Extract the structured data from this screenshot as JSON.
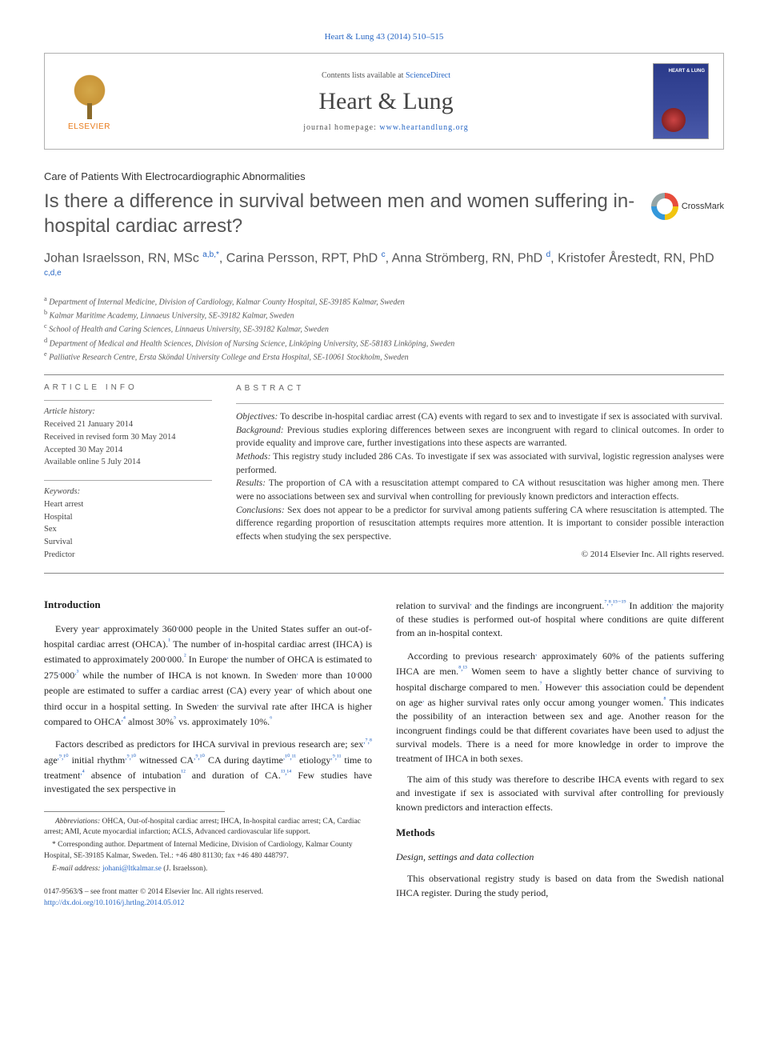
{
  "citation": "Heart & Lung 43 (2014) 510–515",
  "header": {
    "contents_prefix": "Contents lists available at ",
    "contents_link": "ScienceDirect",
    "journal_name": "Heart & Lung",
    "homepage_prefix": "journal homepage: ",
    "homepage_link": "www.heartandlung.org",
    "elsevier": "ELSEVIER",
    "cover_label": "HEART & LUNG"
  },
  "article_type": "Care of Patients With Electrocardiographic Abnormalities",
  "title": "Is there a difference in survival between men and women suffering in-hospital cardiac arrest?",
  "crossmark_label": "CrossMark",
  "authors_html": "Johan Israelsson, RN, MSc <sup>a,b,*</sup>, Carina Persson, RPT, PhD <sup>c</sup>, Anna Strömberg, RN, PhD <sup>d</sup>, Kristofer Årestedt, RN, PhD <sup>c,d,e</sup>",
  "affiliations": [
    "a Department of Internal Medicine, Division of Cardiology, Kalmar County Hospital, SE-39185 Kalmar, Sweden",
    "b Kalmar Maritime Academy, Linnaeus University, SE-39182 Kalmar, Sweden",
    "c School of Health and Caring Sciences, Linnaeus University, SE-39182 Kalmar, Sweden",
    "d Department of Medical and Health Sciences, Division of Nursing Science, Linköping University, SE-58183 Linköping, Sweden",
    "e Palliative Research Centre, Ersta Sköndal University College and Ersta Hospital, SE-10061 Stockholm, Sweden"
  ],
  "info_label": "ARTICLE INFO",
  "abstract_label": "ABSTRACT",
  "history": {
    "label": "Article history:",
    "received": "Received 21 January 2014",
    "revised": "Received in revised form 30 May 2014",
    "accepted": "Accepted 30 May 2014",
    "online": "Available online 5 July 2014"
  },
  "keywords": {
    "label": "Keywords:",
    "items": [
      "Heart arrest",
      "Hospital",
      "Sex",
      "Survival",
      "Predictor"
    ]
  },
  "abstract": {
    "objectives": "Objectives: To describe in-hospital cardiac arrest (CA) events with regard to sex and to investigate if sex is associated with survival.",
    "background": "Background: Previous studies exploring differences between sexes are incongruent with regard to clinical outcomes. In order to provide equality and improve care, further investigations into these aspects are warranted.",
    "methods": "Methods: This registry study included 286 CAs. To investigate if sex was associated with survival, logistic regression analyses were performed.",
    "results": "Results: The proportion of CA with a resuscitation attempt compared to CA without resuscitation was higher among men. There were no associations between sex and survival when controlling for previously known predictors and interaction effects.",
    "conclusions": "Conclusions: Sex does not appear to be a predictor for survival among patients suffering CA where resuscitation is attempted. The difference regarding proportion of resuscitation attempts requires more attention. It is important to consider possible interaction effects when studying the sex perspective.",
    "copyright": "© 2014 Elsevier Inc. All rights reserved."
  },
  "sections": {
    "introduction_title": "Introduction",
    "methods_title": "Methods",
    "design_title": "Design, settings and data collection"
  },
  "body": {
    "intro_p1": "Every year, approximately 360,000 people in the United States suffer an out-of-hospital cardiac arrest (OHCA).¹ The number of in-hospital cardiac arrest (IHCA) is estimated to approximately 200,000.² In Europe, the number of OHCA is estimated to 275,000,³ while the number of IHCA is not known. In Sweden, more than 10,000 people are estimated to suffer a cardiac arrest (CA) every year, of which about one third occur in a hospital setting. In Sweden, the survival rate after IHCA is higher compared to OHCA,⁴ almost 30%⁵ vs. approximately 10%.⁶",
    "intro_p2": "Factors described as predictors for IHCA survival in previous research are; sex,⁷,⁸ age,⁹,¹⁰ initial rhythm,⁹,¹⁰ witnessed CA,⁹,¹⁰ CA during daytime,¹⁰,¹¹ etiology,⁹,¹¹ time to treatment,⁴ absence of intubation¹² and duration of CA.¹³,¹⁴ Few studies have investigated the sex perspective in",
    "col2_p1": "relation to survival, and the findings are incongruent.⁷,⁸,¹⁵⁻¹⁹ In addition, the majority of these studies is performed out-of hospital where conditions are quite different from an in-hospital context.",
    "col2_p2": "According to previous research, approximately 60% of the patients suffering IHCA are men.⁸,¹³ Women seem to have a slightly better chance of surviving to hospital discharge compared to men.⁷ However, this association could be dependent on age, as higher survival rates only occur among younger women.⁸ This indicates the possibility of an interaction between sex and age. Another reason for the incongruent findings could be that different covariates have been used to adjust the survival models. There is a need for more knowledge in order to improve the treatment of IHCA in both sexes.",
    "col2_p3": "The aim of this study was therefore to describe IHCA events with regard to sex and investigate if sex is associated with survival after controlling for previously known predictors and interaction effects.",
    "methods_p1": "This observational registry study is based on data from the Swedish national IHCA register. During the study period,"
  },
  "footnotes": {
    "abbrev": "Abbreviations: OHCA, Out-of-hospital cardiac arrest; IHCA, In-hospital cardiac arrest; CA, Cardiac arrest; AMI, Acute myocardial infarction; ACLS, Advanced cardiovascular life support.",
    "corresponding": "* Corresponding author. Department of Internal Medicine, Division of Cardiology, Kalmar County Hospital, SE-39185 Kalmar, Sweden. Tel.: +46 480 81130; fax +46 480 448797.",
    "email_label": "E-mail address: ",
    "email": "johani@ltkalmar.se",
    "email_suffix": " (J. Israelsson)."
  },
  "footer": {
    "issn": "0147-9563/$ – see front matter © 2014 Elsevier Inc. All rights reserved.",
    "doi": "http://dx.doi.org/10.1016/j.hrtlng.2014.05.012"
  },
  "colors": {
    "link": "#2766c4",
    "text": "#333333",
    "border": "#b0b0b0",
    "rule": "#888888",
    "elsevier_orange": "#e87a1a",
    "cover_blue": "#2a3a8a"
  }
}
